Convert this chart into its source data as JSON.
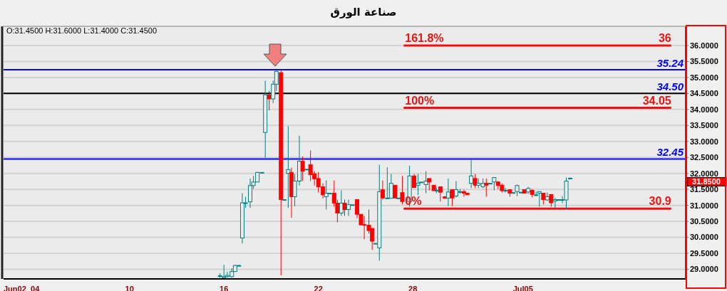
{
  "chart_data": {
    "type": "candlestick",
    "title": "صناعة الورق",
    "x": [
      "--06-15T18:00",
      "--06-16T00:00",
      "--06-16T05:00",
      "--06-16T12:00",
      "--06-16T17:00",
      "--06-16T23:00",
      "--06-17T04:00",
      "--06-17T09:00",
      "--06-17T16:00",
      "--06-17T21:00",
      "--06-18T03:00",
      "--06-18T10:00",
      "--06-18T15:00",
      "--06-18T21:00",
      "--06-19T03:00",
      "--06-19T08:00",
      "--06-19T15:00",
      "--06-19T20:00",
      "--06-20T02:00",
      "--06-20T07:00",
      "--06-20T12:00",
      "--06-20T19:00",
      "--06-21T00:00",
      "--06-21T06:00",
      "--06-21T12:00",
      "--06-21T18:00",
      "--06-22T00:00",
      "--06-22T07:00",
      "--06-22T12:00",
      "--06-22T17:00",
      "--06-23T00:00",
      "--06-23T05:00",
      "--06-23T11:00",
      "--06-23T16:00",
      "--06-23T22:00",
      "--06-24T04:00",
      "--06-24T11:00",
      "--06-24T17:00",
      "--06-24T22:00",
      "--06-25T05:00",
      "--06-25T10:00",
      "--06-25T15:00",
      "--06-25T21:00",
      "--06-26T02:00",
      "--06-26T09:00",
      "--06-26T15:00",
      "--06-26T21:00",
      "--06-27T02:00",
      "--06-27T08:00",
      "--06-27T19:00",
      "--06-28T02:00",
      "--06-28T08:00",
      "--06-28T13:00",
      "--06-28T20:00",
      "--06-29T01:00",
      "--06-29T08:00",
      "--06-29T12:00",
      "--06-29T18:00",
      "--06-30T01:00",
      "--06-30T06:00",
      "--06-30T12:00",
      "--06-30T18:00",
      "--07-01T00:00",
      "--07-01T06:00",
      "--07-01T11:00",
      "--07-01T17:00",
      "--07-01T23:00",
      "--07-02T04:00",
      "--07-02T11:00",
      "--07-02T16:00",
      "--07-02T22:00",
      "--07-03T04:00",
      "--07-03T10:00",
      "--07-03T16:00",
      "--07-03T21:00",
      "--07-04T04:00",
      "--07-04T09:00",
      "--07-04T15:00",
      "--07-04T21:00",
      "--07-05T02:00",
      "--07-05T08:00",
      "--07-05T14:00",
      "--07-05T20:00",
      "--07-06T01:00",
      "--07-06T07:00",
      "--07-06T13:00",
      "--07-06T19:00",
      "--07-07T01:00",
      "--07-07T06:00",
      "--07-07T12:00",
      "--07-07T18:00",
      "--07-08T00:00"
    ],
    "ohlc": [
      [
        28.78,
        28.88,
        28.74,
        28.8
      ],
      [
        28.74,
        29.14,
        28.74,
        28.77
      ],
      [
        28.77,
        28.92,
        28.74,
        28.81
      ],
      [
        28.77,
        29.03,
        28.74,
        28.93
      ],
      [
        28.93,
        29.14,
        28.93,
        29.12
      ],
      [
        29.12,
        29.14,
        29.12,
        29.12
      ],
      [
        29.98,
        31.38,
        29.81,
        31.08
      ],
      [
        31.07,
        31.27,
        30.92,
        31.08
      ],
      [
        31.11,
        31.84,
        30.92,
        31.62
      ],
      [
        31.62,
        31.92,
        31.52,
        31.73
      ],
      [
        31.73,
        32.05,
        31.73,
        32.03
      ],
      [
        32.03,
        32.03,
        32.03,
        32.03
      ],
      [
        33.28,
        34.9,
        32.49,
        34.46
      ],
      [
        34.46,
        34.58,
        33.97,
        34.33
      ],
      [
        34.33,
        34.9,
        34.2,
        34.79
      ],
      [
        34.79,
        35.21,
        34.58,
        35.19
      ],
      [
        35.15,
        35.22,
        28.81,
        31.18
      ],
      [
        31.18,
        31.18,
        31.18,
        31.18
      ],
      [
        32.0,
        33.48,
        30.92,
        32.12
      ],
      [
        32.03,
        32.18,
        30.61,
        31.27
      ],
      [
        31.27,
        31.98,
        30.97,
        31.76
      ],
      [
        31.76,
        33.18,
        31.62,
        32.38
      ],
      [
        32.38,
        32.53,
        31.76,
        32.07
      ],
      [
        32.13,
        32.13,
        32.13,
        32.13
      ],
      [
        32.27,
        32.72,
        31.76,
        31.96
      ],
      [
        31.99,
        32.07,
        31.62,
        31.83
      ],
      [
        31.84,
        32.04,
        31.4,
        31.58
      ],
      [
        31.58,
        31.69,
        31.22,
        31.33
      ],
      [
        31.27,
        31.78,
        30.87,
        31.38
      ],
      [
        31.38,
        31.38,
        31.38,
        31.38
      ],
      [
        31.38,
        31.78,
        30.96,
        31.07
      ],
      [
        31.07,
        31.18,
        30.47,
        30.76
      ],
      [
        30.76,
        31.47,
        30.67,
        31.07
      ],
      [
        31.07,
        31.18,
        30.67,
        30.87
      ],
      [
        30.87,
        31.18,
        30.67,
        31.02
      ],
      [
        31.02,
        31.02,
        31.02,
        31.02
      ],
      [
        31.18,
        31.18,
        30.6,
        30.72
      ],
      [
        30.72,
        30.72,
        30.38,
        30.39
      ],
      [
        30.4,
        30.67,
        29.94,
        30.38
      ],
      [
        30.38,
        30.87,
        30.12,
        30.21
      ],
      [
        30.28,
        30.28,
        29.61,
        29.88
      ],
      [
        29.81,
        29.81,
        29.81,
        29.81
      ],
      [
        29.67,
        32.27,
        29.27,
        31.43
      ],
      [
        31.49,
        31.78,
        31.18,
        31.23
      ],
      [
        31.23,
        32.19,
        31.22,
        31.23
      ],
      [
        31.22,
        31.98,
        31.22,
        31.69
      ],
      [
        31.63,
        31.63,
        31.22,
        31.23
      ],
      [
        31.23,
        31.23,
        31.23,
        31.23
      ],
      [
        31.4,
        31.92,
        31.03,
        31.12
      ],
      [
        31.11,
        32.24,
        30.96,
        31.92
      ],
      [
        31.92,
        31.98,
        31.54,
        31.56
      ],
      [
        31.63,
        31.98,
        31.33,
        31.69
      ],
      [
        31.73,
        31.73,
        31.73,
        31.73
      ],
      [
        31.65,
        32.07,
        31.38,
        31.76
      ],
      [
        31.84,
        31.84,
        31.47,
        31.73
      ],
      [
        31.63,
        31.63,
        31.46,
        31.46
      ],
      [
        31.47,
        31.56,
        31.38,
        31.47
      ],
      [
        31.58,
        31.58,
        31.12,
        31.41
      ],
      [
        31.27,
        31.27,
        31.22,
        31.22
      ],
      [
        31.23,
        31.84,
        30.98,
        31.42
      ],
      [
        31.49,
        31.49,
        30.98,
        31.23
      ],
      [
        31.29,
        31.76,
        31.25,
        31.49
      ],
      [
        31.43,
        31.51,
        31.36,
        31.43
      ],
      [
        31.43,
        31.49,
        31.27,
        31.38
      ],
      [
        31.38,
        31.38,
        31.33,
        31.33
      ],
      [
        31.69,
        32.42,
        31.54,
        31.92
      ],
      [
        31.84,
        31.98,
        31.54,
        31.63
      ],
      [
        31.63,
        31.84,
        31.54,
        31.69
      ],
      [
        31.58,
        31.84,
        31.54,
        31.69
      ],
      [
        31.69,
        31.84,
        31.27,
        31.63
      ],
      [
        31.69,
        31.69,
        31.69,
        31.69
      ],
      [
        31.73,
        31.87,
        31.47,
        31.87
      ],
      [
        31.73,
        31.76,
        31.51,
        31.62
      ],
      [
        31.63,
        31.69,
        31.4,
        31.46
      ],
      [
        31.47,
        31.54,
        31.4,
        31.47
      ],
      [
        31.49,
        31.49,
        31.27,
        31.38
      ],
      [
        31.4,
        31.4,
        31.4,
        31.4
      ],
      [
        31.43,
        31.65,
        31.29,
        31.62
      ],
      [
        31.41,
        31.41,
        31.41,
        31.41
      ],
      [
        31.49,
        31.49,
        31.38,
        31.38
      ],
      [
        31.42,
        31.58,
        31.36,
        31.53
      ],
      [
        31.47,
        31.51,
        31.25,
        31.34
      ],
      [
        31.33,
        31.43,
        31.29,
        31.33
      ],
      [
        31.38,
        31.43,
        30.96,
        31.43
      ],
      [
        31.38,
        31.38,
        31.03,
        31.18
      ],
      [
        31.17,
        31.4,
        31.14,
        31.27
      ],
      [
        31.34,
        31.34,
        30.96,
        31.08
      ],
      [
        31.14,
        31.23,
        30.92,
        31.18
      ],
      [
        31.18,
        31.18,
        31.18,
        31.18
      ],
      [
        31.18,
        31.29,
        31.07,
        31.18
      ],
      [
        31.17,
        31.87,
        30.89,
        31.76
      ],
      [
        31.84,
        31.87,
        31.84,
        31.85
      ]
    ],
    "colors": [
      "#008080",
      "#008080",
      "#008080",
      "#008080",
      "#008080",
      "#008080",
      "#008080",
      "#008080",
      "#008080",
      "#008080",
      "#008080",
      "#008080",
      "#008080",
      "#ff0000",
      "#008080",
      "#008080",
      "#ff0000",
      "#008080",
      "#008080",
      "#ff0000",
      "#008080",
      "#008080",
      "#ff0000",
      "#008080",
      "#ff0000",
      "#ff0000",
      "#ff0000",
      "#ff0000",
      "#008080",
      "#008080",
      "#ff0000",
      "#ff0000",
      "#008080",
      "#ff0000",
      "#008080",
      "#008080",
      "#ff0000",
      "#ff0000",
      "#ff0000",
      "#ff0000",
      "#ff0000",
      "#008080",
      "#008080",
      "#ff0000",
      "#008080",
      "#008080",
      "#ff0000",
      "#008080",
      "#ff0000",
      "#008080",
      "#ff0000",
      "#008080",
      "#008080",
      "#008080",
      "#ff0000",
      "#ff0000",
      "#008080",
      "#ff0000",
      "#ff0000",
      "#008080",
      "#ff0000",
      "#008080",
      "#008080",
      "#ff0000",
      "#ff0000",
      "#008080",
      "#ff0000",
      "#008080",
      "#008080",
      "#ff0000",
      "#008080",
      "#008080",
      "#ff0000",
      "#ff0000",
      "#008080",
      "#ff0000",
      "#008080",
      "#008080",
      "#008080",
      "#ff0000",
      "#008080",
      "#ff0000",
      "#008080",
      "#008080",
      "#ff0000",
      "#008080",
      "#ff0000",
      "#008080",
      "#008080",
      "#008080",
      "#008080",
      "#008080"
    ],
    "series": [
      {
        "type": "line",
        "name": "161.8%",
        "color": "#ee1111",
        "x": [
          "--06-27T10:00",
          "--07-14T10:00"
        ],
        "values": [
          36,
          36
        ],
        "value_labels": [
          null,
          "36"
        ]
      },
      {
        "type": "line",
        "name": "100%",
        "color": "#ee1111",
        "x": [
          "--06-27T10:00",
          "--07-14T10:00"
        ],
        "values": [
          34.05,
          34.05
        ],
        "value_labels": [
          null,
          "34.05"
        ]
      },
      {
        "type": "line",
        "name": "0%",
        "color": "#ee1111",
        "x": [
          "--06-27T10:00",
          "--07-14T10:00"
        ],
        "values": [
          30.9,
          30.9
        ],
        "value_labels": [
          null,
          "30.9"
        ]
      }
    ],
    "ref_lines": [
      {
        "axis": "y",
        "value": 35.24,
        "label": "35.24",
        "color": "#0000ff"
      },
      {
        "axis": "y",
        "value": 34.5,
        "label": "34.50",
        "color": "#000000"
      },
      {
        "axis": "y",
        "value": 32.45,
        "label": "32.45",
        "color": "#0000ff"
      }
    ],
    "annotations": [
      "O:31.4500  H:31.6000  L:31.4000  C:31.4500",
      "31.8500"
    ],
    "xlim": [
      "--06-02T00:00",
      "--07-15T08:00"
    ],
    "xticks": [
      {
        "value": "--06-02",
        "label": "Jun02"
      },
      {
        "value": "--06-04",
        "label": "04"
      },
      {
        "value": "--06-10",
        "label": "10"
      },
      {
        "value": "--06-16",
        "label": "16"
      },
      {
        "value": "--06-22",
        "label": "22"
      },
      {
        "value": "--06-28",
        "label": "28"
      },
      {
        "value": "--07-05",
        "label": "Jul05"
      }
    ],
    "ylim": [
      28.7,
      36.6
    ],
    "yticks": [
      {
        "value": 29,
        "label": "29.0000"
      },
      {
        "value": 29.5,
        "label": "29.5000"
      },
      {
        "value": 30,
        "label": "30.0000"
      },
      {
        "value": 30.5,
        "label": "30.5000"
      },
      {
        "value": 31,
        "label": "31.0000"
      },
      {
        "value": 31.5,
        "label": "31.5000"
      },
      {
        "value": 32,
        "label": "32.0000"
      },
      {
        "value": 32.5,
        "label": "32.5000"
      },
      {
        "value": 33,
        "label": "33.0000"
      },
      {
        "value": 33.5,
        "label": "33.5000"
      },
      {
        "value": 34,
        "label": "34.0000"
      },
      {
        "value": 34.5,
        "label": "34.5000"
      },
      {
        "value": 35,
        "label": "35.0000"
      },
      {
        "value": 35.5,
        "label": "35.5000"
      },
      {
        "value": 36,
        "label": "36.0000"
      }
    ],
    "grid": "y"
  }
}
